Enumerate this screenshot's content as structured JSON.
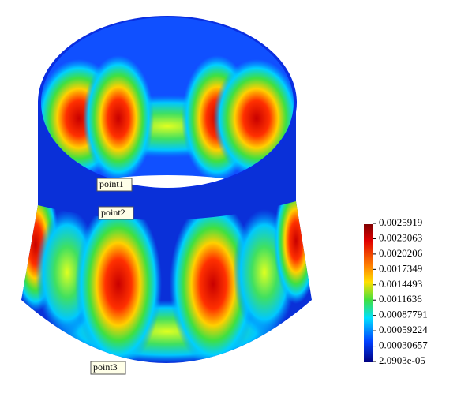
{
  "colorbar": {
    "labels": [
      "0.0025919",
      "0.0023063",
      "0.0020206",
      "0.0017349",
      "0.0014493",
      "0.0011636",
      "0.00087791",
      "0.00059224",
      "0.00030657",
      "2.0903e-05"
    ]
  },
  "points": [
    "point1",
    "point2",
    "point3"
  ]
}
